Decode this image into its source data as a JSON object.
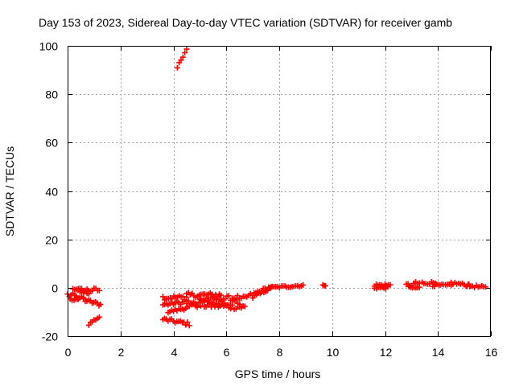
{
  "chart_data": {
    "type": "scatter",
    "title": "Day 153 of 2023, Sidereal Day-to-day VTEC variation (SDTVAR) for receiver gamb",
    "xlabel": "GPS time / hours",
    "ylabel": "SDTVAR / TECUs",
    "xlim": [
      0,
      16
    ],
    "ylim": [
      -20,
      100
    ],
    "xticks": [
      0,
      2,
      4,
      6,
      8,
      10,
      12,
      14,
      16
    ],
    "yticks": [
      -20,
      0,
      20,
      40,
      60,
      80,
      100
    ],
    "xtick_labels": [
      "0",
      "2",
      "4",
      "6",
      "8",
      "10",
      "12",
      "14",
      "16"
    ],
    "ytick_labels": [
      "-20",
      "0",
      "20",
      "40",
      "60",
      "80",
      "100"
    ],
    "grid": true,
    "marker": "plus",
    "color": "#ff0000",
    "segments": [
      {
        "x0": 0.0,
        "x1": 0.4,
        "y0": -3,
        "y1": -4,
        "jitter": 1.2
      },
      {
        "x0": 0.2,
        "x1": 0.8,
        "y0": -1,
        "y1": -2,
        "jitter": 0.8
      },
      {
        "x0": 0.4,
        "x1": 1.2,
        "y0": -1,
        "y1": -1,
        "jitter": 1.0
      },
      {
        "x0": 0.1,
        "x1": 0.6,
        "y0": -5,
        "y1": -4,
        "jitter": 0.6
      },
      {
        "x0": 0.6,
        "x1": 1.25,
        "y0": -5,
        "y1": -7,
        "jitter": 0.8
      },
      {
        "x0": 0.8,
        "x1": 1.2,
        "y0": -15,
        "y1": -12,
        "jitter": 0.6
      },
      {
        "x0": 4.15,
        "x1": 4.5,
        "y0": 91,
        "y1": 99,
        "jitter": 0.5
      },
      {
        "x0": 3.6,
        "x1": 4.5,
        "y0": -4,
        "y1": -4,
        "jitter": 1.0
      },
      {
        "x0": 3.6,
        "x1": 4.4,
        "y0": -7,
        "y1": -6,
        "jitter": 0.8
      },
      {
        "x0": 3.6,
        "x1": 4.6,
        "y0": -13,
        "y1": -15,
        "jitter": 0.8
      },
      {
        "x0": 3.8,
        "x1": 4.6,
        "y0": -10,
        "y1": -8,
        "jitter": 0.6
      },
      {
        "x0": 4.5,
        "x1": 5.8,
        "y0": -3,
        "y1": -3,
        "jitter": 1.0
      },
      {
        "x0": 4.5,
        "x1": 6.5,
        "y0": -6,
        "y1": -6,
        "jitter": 1.5
      },
      {
        "x0": 4.7,
        "x1": 6.7,
        "y0": -7,
        "y1": -8,
        "jitter": 1.2
      },
      {
        "x0": 5.0,
        "x1": 6.5,
        "y0": -5,
        "y1": -4,
        "jitter": 1.0
      },
      {
        "x0": 6.5,
        "x1": 7.6,
        "y0": -5,
        "y1": 0,
        "jitter": 0.8
      },
      {
        "x0": 7.0,
        "x1": 7.7,
        "y0": -4,
        "y1": 0,
        "jitter": 0.6
      },
      {
        "x0": 7.6,
        "x1": 8.9,
        "y0": 0,
        "y1": 1,
        "jitter": 0.5
      },
      {
        "x0": 9.65,
        "x1": 9.75,
        "y0": 1,
        "y1": 1,
        "jitter": 0.2
      },
      {
        "x0": 11.6,
        "x1": 12.2,
        "y0": 1,
        "y1": 1,
        "jitter": 0.8
      },
      {
        "x0": 11.6,
        "x1": 12.1,
        "y0": 0,
        "y1": 0,
        "jitter": 0.5
      },
      {
        "x0": 12.8,
        "x1": 13.3,
        "y0": 1,
        "y1": 2,
        "jitter": 0.8
      },
      {
        "x0": 12.9,
        "x1": 13.3,
        "y0": 0,
        "y1": 0,
        "jitter": 0.5
      },
      {
        "x0": 13.4,
        "x1": 13.9,
        "y0": 2,
        "y1": 2,
        "jitter": 0.6
      },
      {
        "x0": 13.8,
        "x1": 14.5,
        "y0": 1,
        "y1": 1,
        "jitter": 0.5
      },
      {
        "x0": 14.5,
        "x1": 15.2,
        "y0": 2,
        "y1": 1,
        "jitter": 0.6
      },
      {
        "x0": 15.1,
        "x1": 15.8,
        "y0": 1,
        "y1": 0,
        "jitter": 0.6
      }
    ]
  }
}
